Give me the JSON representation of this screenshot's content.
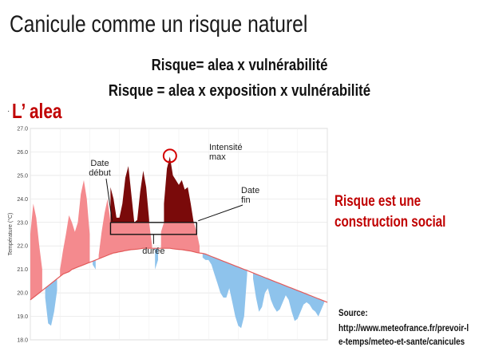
{
  "slide": {
    "title": "Canicule comme un risque naturel",
    "formula_1": "Risque= alea x vulnérabilité",
    "formula_2": "Risque = alea x exposition x vulnérabilité",
    "bullet": "·",
    "heading": "L’ alea",
    "side_note": "Risque est une construction social",
    "source_label": "Source:",
    "source_url": "http://www.meteofrance.fr/prevoir-le-temps/meteo-et-sante/canicules"
  },
  "colors": {
    "above_baseline": "#f48a8e",
    "below_baseline": "#8ec3ec",
    "above_threshold": "#7a0a0a",
    "baseline_curve": "#e35a5a",
    "annotation": "#111111",
    "highlight_circle": "#d40000",
    "heading_red": "#c00000"
  },
  "chart_data": {
    "type": "area",
    "title": "",
    "xlabel": "",
    "ylabel": "Température (°C)",
    "ylim": [
      18.0,
      27.0
    ],
    "yticks": [
      "18.0",
      "19.0",
      "20.0",
      "21.0",
      "22.0",
      "23.0",
      "24.0",
      "25.0",
      "26.0",
      "27.0"
    ],
    "threshold": 23.0,
    "grid": true,
    "x": [
      0,
      1,
      2,
      3,
      4,
      5,
      6,
      7,
      8,
      9,
      10,
      11,
      12,
      13,
      14,
      15,
      16,
      17,
      18,
      19,
      20,
      21,
      22,
      23,
      24,
      25,
      26,
      27,
      28,
      29,
      30,
      31,
      32,
      33,
      34,
      35,
      36,
      37,
      38,
      39,
      40,
      41,
      42,
      43,
      44,
      45,
      46,
      47,
      48,
      49,
      50,
      51,
      52,
      53,
      54,
      55,
      56,
      57,
      58,
      59,
      60,
      61,
      62,
      63,
      64,
      65,
      66,
      67,
      68,
      69,
      70,
      71,
      72,
      73,
      74,
      75,
      76,
      77,
      78,
      79,
      80,
      81,
      82,
      83,
      84,
      85,
      86,
      87,
      88,
      89,
      90,
      91,
      92,
      93,
      94,
      95,
      96,
      97,
      98,
      99,
      100
    ],
    "series": [
      {
        "role": "observed",
        "values": [
          22.5,
          23.8,
          23.2,
          22.0,
          21.0,
          19.8,
          18.7,
          18.6,
          19.2,
          20.1,
          21.0,
          21.8,
          22.5,
          23.3,
          23.0,
          22.6,
          23.0,
          24.2,
          24.8,
          24.0,
          22.5,
          21.2,
          21.0,
          21.6,
          22.6,
          23.4,
          24.0,
          24.5,
          24.0,
          23.2,
          23.2,
          23.8,
          24.9,
          25.4,
          24.2,
          23.0,
          23.1,
          24.3,
          25.2,
          24.5,
          23.1,
          22.0,
          21.0,
          21.4,
          22.6,
          23.8,
          25.3,
          25.8,
          25.0,
          24.8,
          24.6,
          24.8,
          24.4,
          24.5,
          23.8,
          23.0,
          22.6,
          22.0,
          21.5,
          21.4,
          21.4,
          21.2,
          20.8,
          20.4,
          20.0,
          19.8,
          19.8,
          20.2,
          19.6,
          19.0,
          18.6,
          18.5,
          19.0,
          20.8,
          21.3,
          20.6,
          19.8,
          19.2,
          19.4,
          20.0,
          20.2,
          19.7,
          19.4,
          19.2,
          19.3,
          19.6,
          19.9,
          19.7,
          19.2,
          18.8,
          18.9,
          19.2,
          19.5,
          19.6,
          19.5,
          19.3,
          19.2,
          19.0,
          19.3,
          19.6,
          19.7
        ]
      },
      {
        "role": "baseline",
        "values": [
          19.7,
          19.8,
          19.9,
          20.0,
          20.1,
          20.2,
          20.3,
          20.4,
          20.5,
          20.6,
          20.7,
          20.8,
          20.85,
          20.9,
          21.0,
          21.05,
          21.1,
          21.15,
          21.2,
          21.25,
          21.3,
          21.35,
          21.4,
          21.45,
          21.5,
          21.55,
          21.6,
          21.65,
          21.7,
          21.72,
          21.75,
          21.77,
          21.8,
          21.82,
          21.84,
          21.85,
          21.86,
          21.88,
          21.9,
          21.9,
          21.9,
          21.9,
          21.9,
          21.9,
          21.9,
          21.9,
          21.9,
          21.9,
          21.88,
          21.86,
          21.85,
          21.84,
          21.82,
          21.8,
          21.78,
          21.75,
          21.72,
          21.7,
          21.68,
          21.65,
          21.6,
          21.55,
          21.5,
          21.45,
          21.4,
          21.35,
          21.3,
          21.25,
          21.2,
          21.15,
          21.1,
          21.05,
          21.0,
          20.95,
          20.9,
          20.85,
          20.8,
          20.75,
          20.7,
          20.65,
          20.6,
          20.55,
          20.5,
          20.45,
          20.4,
          20.35,
          20.3,
          20.25,
          20.2,
          20.15,
          20.1,
          20.05,
          20.0,
          19.95,
          19.9,
          19.85,
          19.8,
          19.75,
          19.7,
          19.65,
          19.6
        ]
      }
    ],
    "annotations": {
      "start_label": [
        "Date",
        "début"
      ],
      "end_label": [
        "Date",
        "fin"
      ],
      "peak_label": [
        "Intensité",
        "max"
      ],
      "duration_label": "durée",
      "start_x": 27,
      "end_x": 56,
      "peak_x": 47
    }
  }
}
